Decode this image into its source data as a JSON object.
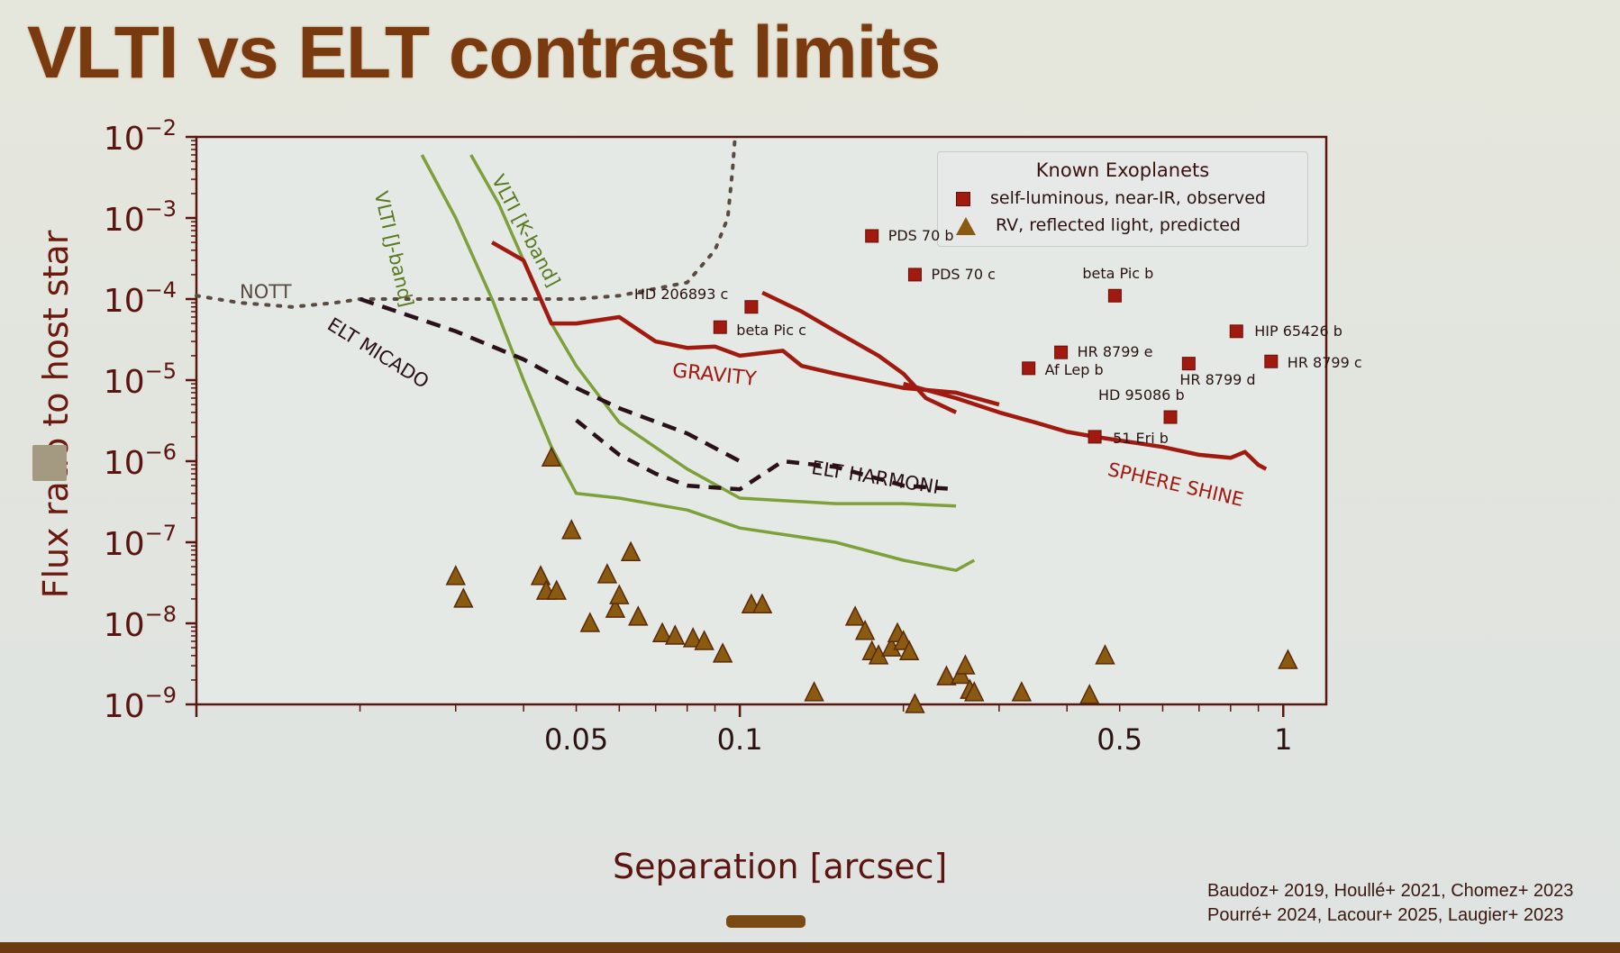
{
  "slide": {
    "title": "VLTI vs ELT contrast limits",
    "citation_line1": "Baudoz+ 2019, Houllé+ 2021, Chomez+ 2023",
    "citation_line2": "Pourré+ 2024, Lacour+ 2025, Laugier+ 2023"
  },
  "colors": {
    "title": "#7a3a10",
    "axis": "#5a1510",
    "vlti": "#7ea03a",
    "gravity": "#a01a10",
    "elt": "#2a1018",
    "nott": "#5a4a40",
    "planet_square": "#a01a10",
    "planet_triangle": "#8a5a10"
  },
  "chart_data": {
    "type": "scatter",
    "title": "VLTI vs ELT contrast limits",
    "xlabel": "Separation [arcsec]",
    "ylabel": "Flux ratio to host star",
    "xscale": "log",
    "yscale": "log",
    "xlim": [
      0.01,
      1.2
    ],
    "ylim": [
      1e-09,
      0.01
    ],
    "x_ticks": [
      0.05,
      0.1,
      0.5,
      1
    ],
    "x_tick_labels": [
      "0.05",
      "0.1",
      "0.5",
      "1"
    ],
    "y_ticks": [
      0.01,
      0.001,
      0.0001,
      1e-05,
      1e-06,
      1e-07,
      1e-08,
      1e-09
    ],
    "y_tick_labels": [
      "10^-2",
      "10^-3",
      "10^-4",
      "10^-5",
      "10^-6",
      "10^-7",
      "10^-8",
      "10^-9"
    ],
    "legend": {
      "title": "Known Exoplanets",
      "position": "upper right",
      "entries": [
        {
          "marker": "square",
          "label": "self-luminous, near-IR, observed"
        },
        {
          "marker": "triangle",
          "label": "RV, reflected light, predicted"
        }
      ]
    },
    "series": [
      {
        "name": "NOTT",
        "style": "dotted",
        "x": [
          0.01,
          0.012,
          0.015,
          0.018,
          0.02,
          0.025,
          0.03,
          0.04,
          0.05,
          0.06,
          0.08,
          0.09,
          0.095,
          0.097,
          0.098
        ],
        "y": [
          0.00011,
          9e-05,
          8e-05,
          9e-05,
          0.0001,
          0.0001,
          0.0001,
          0.0001,
          0.0001,
          0.00011,
          0.00016,
          0.0004,
          0.001,
          0.004,
          0.01
        ]
      },
      {
        "name": "VLTI [J-band]",
        "style": "solid",
        "x": [
          0.026,
          0.03,
          0.035,
          0.04,
          0.045,
          0.05,
          0.06,
          0.08,
          0.1,
          0.15,
          0.2,
          0.25,
          0.27
        ],
        "y": [
          0.006,
          0.001,
          0.0001,
          1e-05,
          1.5e-06,
          4e-07,
          3.5e-07,
          2.5e-07,
          1.5e-07,
          1e-07,
          6e-08,
          4.5e-08,
          6e-08
        ]
      },
      {
        "name": "VLTI [K-band]",
        "style": "solid",
        "x": [
          0.032,
          0.036,
          0.04,
          0.045,
          0.05,
          0.06,
          0.08,
          0.1,
          0.15,
          0.2,
          0.25
        ],
        "y": [
          0.006,
          0.0015,
          0.0003,
          5e-05,
          1.5e-05,
          3e-06,
          8e-07,
          3.5e-07,
          3e-07,
          3e-07,
          2.8e-07
        ]
      },
      {
        "name": "GRAVITY",
        "style": "solid",
        "x": [
          0.035,
          0.04,
          0.045,
          0.05,
          0.06,
          0.07,
          0.08,
          0.09,
          0.1,
          0.12,
          0.13,
          0.15,
          0.2,
          0.25,
          0.3
        ],
        "y": [
          0.0005,
          0.0003,
          5e-05,
          5e-05,
          6e-05,
          3e-05,
          2.5e-05,
          2.6e-05,
          2e-05,
          2.3e-05,
          1.5e-05,
          1.2e-05,
          8e-06,
          7e-06,
          5e-06
        ]
      },
      {
        "name": "GRAVITY (second curve)",
        "style": "solid",
        "x": [
          0.11,
          0.13,
          0.15,
          0.18,
          0.2,
          0.22,
          0.25
        ],
        "y": [
          0.00012,
          7e-05,
          4e-05,
          2e-05,
          1.2e-05,
          6e-06,
          4e-06
        ]
      },
      {
        "name": "SPHERE SHINE",
        "style": "solid",
        "x": [
          0.2,
          0.25,
          0.3,
          0.35,
          0.4,
          0.45,
          0.5,
          0.6,
          0.7,
          0.8,
          0.85,
          0.9,
          0.93
        ],
        "y": [
          9e-06,
          6e-06,
          4e-06,
          3e-06,
          2.3e-06,
          2e-06,
          1.8e-06,
          1.5e-06,
          1.2e-06,
          1.1e-06,
          1.3e-06,
          9e-07,
          8e-07
        ]
      },
      {
        "name": "ELT MICADO",
        "style": "dashed",
        "x": [
          0.02,
          0.03,
          0.04,
          0.05,
          0.06,
          0.08,
          0.1
        ],
        "y": [
          0.0001,
          4e-05,
          1.8e-05,
          8e-06,
          4.5e-06,
          2.2e-06,
          1e-06
        ]
      },
      {
        "name": "ELT HARMONI",
        "style": "dashed",
        "x": [
          0.05,
          0.06,
          0.07,
          0.08,
          0.1,
          0.12,
          0.15,
          0.2,
          0.25
        ],
        "y": [
          3.2e-06,
          1.2e-06,
          7e-07,
          5e-07,
          4.5e-07,
          1e-06,
          8.5e-07,
          5e-07,
          4.5e-07
        ]
      }
    ],
    "planets_observed": [
      {
        "name": "PDS 70 b",
        "x": 0.175,
        "y": 0.0006
      },
      {
        "name": "PDS 70 c",
        "x": 0.21,
        "y": 0.0002
      },
      {
        "name": "HD 206893 c",
        "x": 0.105,
        "y": 8e-05
      },
      {
        "name": "beta Pic c",
        "x": 0.092,
        "y": 4.5e-05
      },
      {
        "name": "beta Pic b",
        "x": 0.49,
        "y": 0.00011
      },
      {
        "name": "HIP 65426 b",
        "x": 0.82,
        "y": 4e-05
      },
      {
        "name": "HR 8799 e",
        "x": 0.39,
        "y": 2.2e-05
      },
      {
        "name": "Af Lep b",
        "x": 0.34,
        "y": 1.4e-05
      },
      {
        "name": "HR 8799 d",
        "x": 0.67,
        "y": 1.6e-05
      },
      {
        "name": "HR 8799 c",
        "x": 0.95,
        "y": 1.7e-05
      },
      {
        "name": "HD 95086 b",
        "x": 0.62,
        "y": 3.5e-06
      },
      {
        "name": "51 Eri b",
        "x": 0.45,
        "y": 2e-06
      }
    ],
    "planets_predicted_rv": {
      "x": [
        0.045,
        0.03,
        0.031,
        0.043,
        0.044,
        0.046,
        0.049,
        0.053,
        0.057,
        0.059,
        0.06,
        0.063,
        0.065,
        0.072,
        0.076,
        0.082,
        0.086,
        0.093,
        0.105,
        0.11,
        0.137,
        0.163,
        0.17,
        0.175,
        0.18,
        0.19,
        0.195,
        0.2,
        0.205,
        0.21,
        0.24,
        0.255,
        0.26,
        0.265,
        0.27,
        0.33,
        0.44,
        0.47,
        1.02
      ],
      "y": [
        1.1e-06,
        3.8e-08,
        2e-08,
        3.8e-08,
        2.5e-08,
        2.5e-08,
        1.4e-07,
        1e-08,
        4e-08,
        1.5e-08,
        2.2e-08,
        7.5e-08,
        1.2e-08,
        7.5e-09,
        7e-09,
        6.5e-09,
        6e-09,
        4.2e-09,
        1.7e-08,
        1.7e-08,
        1.4e-09,
        1.2e-08,
        8e-09,
        4.5e-09,
        4e-09,
        5e-09,
        7.5e-09,
        6e-09,
        4.5e-09,
        1e-09,
        2.2e-09,
        2.3e-09,
        3e-09,
        1.5e-09,
        1.4e-09,
        1.4e-09,
        1.3e-09,
        4e-09,
        3.5e-09
      ]
    },
    "annotations": [
      {
        "text": "NOTT",
        "color": "nott"
      },
      {
        "text": "VLTI [J-band]",
        "color": "vlti"
      },
      {
        "text": "VLTI [K-band]",
        "color": "vlti"
      },
      {
        "text": "GRAVITY",
        "color": "gravity"
      },
      {
        "text": "ELT MICADO",
        "color": "elt"
      },
      {
        "text": "ELT HARMONI",
        "color": "elt"
      },
      {
        "text": "SPHERE SHINE",
        "color": "gravity"
      }
    ],
    "grid": false
  },
  "labels": {
    "nott": "NOTT",
    "vlti_j": "VLTI [J-band]",
    "vlti_k": "VLTI [K-band]",
    "gravity": "GRAVITY",
    "micado": "ELT MICADO",
    "harmoni": "ELT HARMONI",
    "sphere": "SPHERE SHINE"
  }
}
